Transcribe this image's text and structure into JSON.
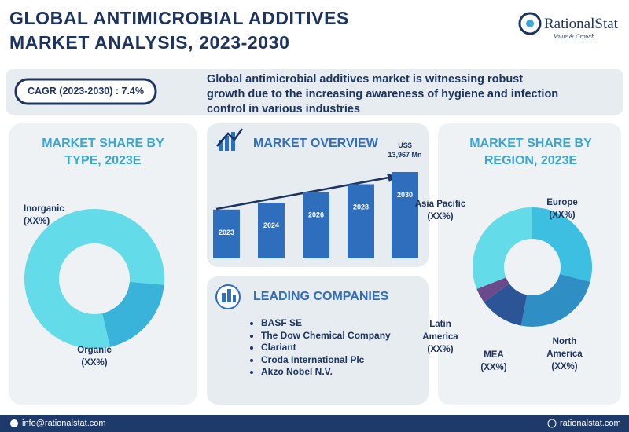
{
  "header": {
    "title_line1": "GLOBAL ANTIMICROBIAL ADDITIVES",
    "title_line2": "MARKET ANALYSIS, 2023-2030",
    "logo_name": "RationalStat",
    "logo_tagline": "Value & Growth"
  },
  "cagr": "CAGR (2023-2030) : 7.4%",
  "summary": "Global antimicrobial additives market is witnessing robust growth due to the increasing awareness of hygiene and infection control in various industries",
  "chart_data": [
    {
      "type": "donut",
      "title": "MARKET SHARE BY TYPE, 2023E",
      "categories": [
        "Inorganic",
        "Organic"
      ],
      "values": [
        80,
        20
      ],
      "value_labels": [
        "(XX%)",
        "(XX%)"
      ],
      "colors": [
        "#63dbe8",
        "#3ab3da"
      ]
    },
    {
      "type": "bar",
      "title": "MARKET OVERVIEW",
      "categories": [
        "2023",
        "2024",
        "2026",
        "2028",
        "2030"
      ],
      "values": [
        7900,
        9000,
        10700,
        12000,
        13967
      ],
      "value_labels": [
        null,
        null,
        null,
        null,
        "US$ 13,967 Mn"
      ],
      "color": "#2f6dbd"
    },
    {
      "type": "donut",
      "title": "MARKET SHARE BY REGION, 2023E",
      "categories": [
        "Europe",
        "North America",
        "MEA",
        "Latin America",
        "Asia Pacific"
      ],
      "values": [
        29,
        24,
        12,
        4,
        31
      ],
      "value_labels": [
        "(XX%)",
        "(XX%)",
        "(XX%)",
        "(XX%)",
        "(XX%)"
      ],
      "colors": [
        "#3cbfe0",
        "#2f8fc4",
        "#2b5597",
        "#6b4a8c",
        "#63dbe8"
      ]
    }
  ],
  "leading_companies": {
    "title": "LEADING COMPANIES",
    "items": [
      "BASF SE",
      "The Dow Chemical Company",
      "Clariant",
      "Croda International Plc",
      "Akzo Nobel N.V."
    ]
  },
  "footer": {
    "email": "info@rationalstat.com",
    "website": "rationalstat.com"
  }
}
